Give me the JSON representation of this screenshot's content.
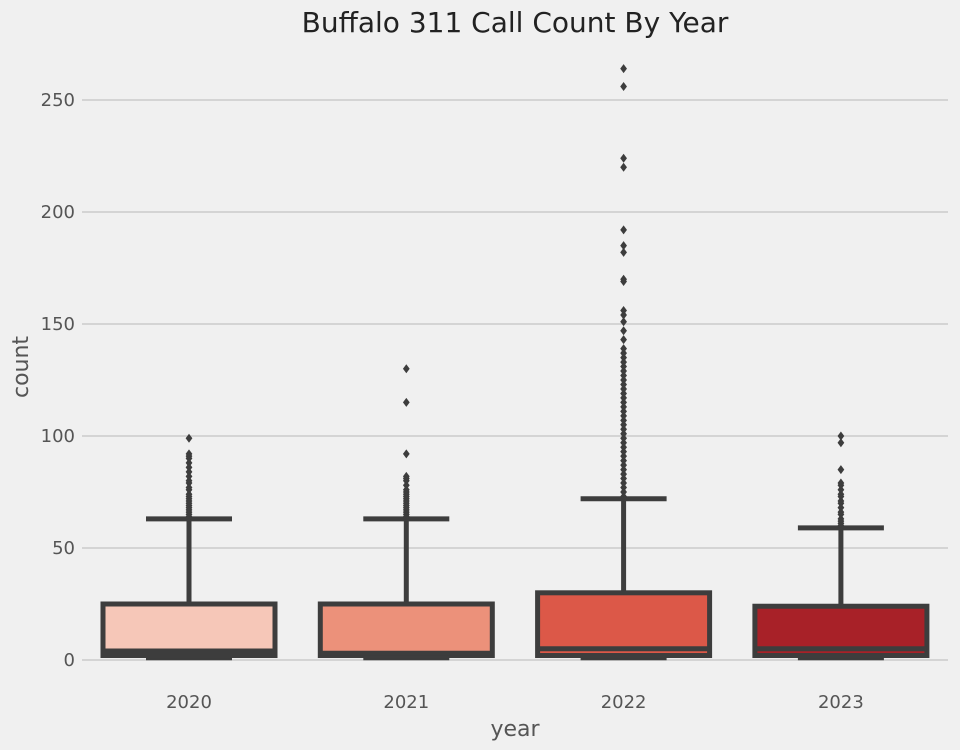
{
  "chart_data": {
    "type": "box",
    "title": "Buffalo 311 Call Count By Year",
    "xlabel": "year",
    "ylabel": "count",
    "categories": [
      "2020",
      "2021",
      "2022",
      "2023"
    ],
    "ylim": [
      0,
      265
    ],
    "yticks": [
      0,
      50,
      100,
      150,
      200,
      250
    ],
    "grid": true,
    "colors": [
      "#f6c7b8",
      "#ec917a",
      "#dc5848",
      "#a82128"
    ],
    "edge_color": "#3d3d3d",
    "boxes": [
      {
        "year": "2020",
        "whisker_low": 1,
        "q1": 2,
        "median": 4,
        "q3": 25,
        "whisker_high": 63,
        "outliers": [
          64,
          65,
          66,
          67,
          68,
          69,
          70,
          71,
          72,
          73,
          74,
          76,
          77,
          79,
          80,
          82,
          84,
          86,
          88,
          90,
          91,
          92,
          99
        ]
      },
      {
        "year": "2021",
        "whisker_low": 1,
        "q1": 2,
        "median": 3,
        "q3": 25,
        "whisker_high": 63,
        "outliers": [
          64,
          65,
          66,
          67,
          68,
          69,
          70,
          71,
          72,
          73,
          74,
          75,
          76,
          78,
          80,
          81,
          82,
          92,
          115,
          130
        ]
      },
      {
        "year": "2022",
        "whisker_low": 1,
        "q1": 2,
        "median": 5,
        "q3": 30,
        "whisker_high": 72,
        "outliers": [
          73,
          75,
          77,
          79,
          81,
          83,
          85,
          87,
          89,
          91,
          93,
          95,
          97,
          99,
          101,
          103,
          105,
          107,
          109,
          111,
          113,
          115,
          117,
          119,
          121,
          123,
          125,
          127,
          129,
          131,
          133,
          135,
          137,
          139,
          143,
          147,
          151,
          154,
          156,
          169,
          170,
          182,
          185,
          192,
          220,
          224,
          256,
          264
        ]
      },
      {
        "year": "2023",
        "whisker_low": 1,
        "q1": 2,
        "median": 5,
        "q3": 24,
        "whisker_high": 59,
        "outliers": [
          60,
          61,
          62,
          63,
          65,
          66,
          68,
          70,
          71,
          73,
          74,
          76,
          78,
          79,
          85,
          97,
          100
        ]
      }
    ]
  }
}
